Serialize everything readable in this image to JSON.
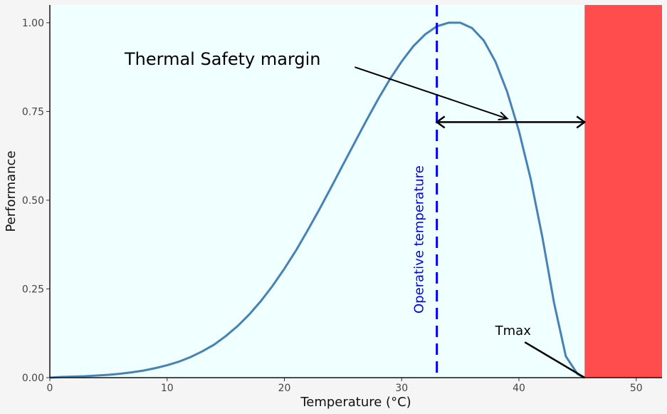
{
  "chart_data": {
    "type": "line",
    "title": "",
    "xlabel": "Temperature (°C)",
    "ylabel": "Performance",
    "xlim": [
      0,
      52.2
    ],
    "ylim": [
      0,
      1.05
    ],
    "x_ticks": [
      0,
      10,
      20,
      30,
      40,
      50
    ],
    "y_ticks": [
      0.0,
      0.25,
      0.5,
      0.75,
      1.0
    ],
    "x_tick_labels": [
      "0",
      "10",
      "20",
      "30",
      "40",
      "50"
    ],
    "y_tick_labels": [
      "0.00",
      "0.25",
      "0.50",
      "0.75",
      "1.00"
    ],
    "grid": false,
    "series": [
      {
        "x": [
          0,
          1,
          2,
          3,
          4,
          5,
          6,
          7,
          8,
          9,
          10,
          11,
          12,
          13,
          14,
          15,
          16,
          17,
          18,
          19,
          20,
          21,
          22,
          23,
          24,
          25,
          26,
          27,
          28,
          29,
          30,
          31,
          32,
          33,
          34,
          35,
          36,
          37,
          38,
          39,
          40,
          41,
          42,
          43,
          44,
          45,
          45.6
        ],
        "values": [
          0.0,
          0.002,
          0.003,
          0.004,
          0.006,
          0.008,
          0.011,
          0.015,
          0.02,
          0.027,
          0.035,
          0.045,
          0.058,
          0.074,
          0.093,
          0.117,
          0.145,
          0.178,
          0.216,
          0.259,
          0.307,
          0.359,
          0.416,
          0.475,
          0.537,
          0.6,
          0.663,
          0.725,
          0.785,
          0.841,
          0.891,
          0.934,
          0.967,
          0.99,
          1.0,
          1.0,
          0.985,
          0.95,
          0.89,
          0.805,
          0.695,
          0.56,
          0.395,
          0.21,
          0.06,
          0.01,
          0.0
        ],
        "color": "#4682b4"
      }
    ],
    "background_color": "#f0ffff",
    "danger_zone": {
      "x_start": 45.6,
      "color": "#ff4d4d"
    },
    "operative_temperature": {
      "x": 33,
      "label": "Operative temperature",
      "color": "#0000ee"
    },
    "safety_margin": {
      "x_from": 33,
      "x_to": 45.6,
      "y": 0.72,
      "label": "Thermal Safety margin"
    },
    "annotations": {
      "margin_pointer": {
        "from": [
          26,
          0.875
        ],
        "to": [
          39,
          0.73
        ]
      },
      "tmax": {
        "label": "Tmax",
        "text_pos": [
          39.5,
          0.12
        ],
        "line_from": [
          40.5,
          0.1
        ],
        "line_to": [
          45.6,
          0.0
        ]
      }
    }
  }
}
